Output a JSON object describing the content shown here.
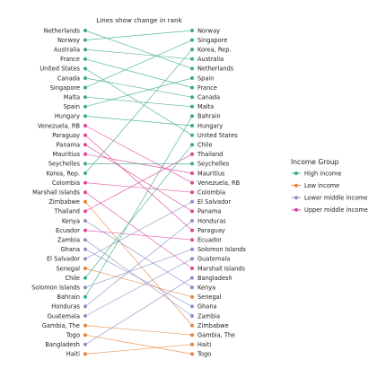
{
  "chart_data": {
    "type": "slope",
    "subtitle": "Lines show change in rank",
    "legend": {
      "title": "Income Group",
      "placement": "right",
      "entries": [
        {
          "name": "High income",
          "color": "#3aaa8a"
        },
        {
          "name": "Low income",
          "color": "#e8823a"
        },
        {
          "name": "Lower middle income",
          "color": "#8a8fc8"
        },
        {
          "name": "Upper middle income",
          "color": "#e0449a"
        }
      ]
    },
    "left_ranking": [
      "Netherlands",
      "Norway",
      "Australia",
      "France",
      "United States",
      "Canada",
      "Singapore",
      "Malta",
      "Spain",
      "Hungary",
      "Venezuela, RB",
      "Paraguay",
      "Panama",
      "Mauritius",
      "Seychelles",
      "Korea, Rep.",
      "Colombia",
      "Marshall Islands",
      "Zimbabwe",
      "Thailand",
      "Kenya",
      "Ecuador",
      "Zambia",
      "Ghana",
      "El Salvador",
      "Senegal",
      "Chile",
      "Solomon Islands",
      "Bahrain",
      "Honduras",
      "Guatemala",
      "Gambia, The",
      "Togo",
      "Bangladesh",
      "Haiti"
    ],
    "right_ranking": [
      "Norway",
      "Singapore",
      "Korea, Rep.",
      "Australia",
      "Netherlands",
      "Spain",
      "France",
      "Canada",
      "Malta",
      "Bahrain",
      "Hungary",
      "United States",
      "Chile",
      "Thailand",
      "Seychelles",
      "Mauritius",
      "Venezuela, RB",
      "Colombia",
      "El Salvador",
      "Panama",
      "Honduras",
      "Paraguay",
      "Ecuador",
      "Solomon Islands",
      "Guatemala",
      "Marshall Islands",
      "Bangladesh",
      "Kenya",
      "Senegal",
      "Ghana",
      "Zambia",
      "Zimbabwe",
      "Gambia, The",
      "Haiti",
      "Togo"
    ],
    "income_group": {
      "Netherlands": "High income",
      "Norway": "High income",
      "Australia": "High income",
      "France": "High income",
      "United States": "High income",
      "Canada": "High income",
      "Singapore": "High income",
      "Malta": "High income",
      "Spain": "High income",
      "Hungary": "High income",
      "Seychelles": "High income",
      "Korea, Rep.": "High income",
      "Chile": "High income",
      "Bahrain": "High income",
      "Venezuela, RB": "Upper middle income",
      "Paraguay": "Upper middle income",
      "Panama": "Upper middle income",
      "Mauritius": "Upper middle income",
      "Colombia": "Upper middle income",
      "Marshall Islands": "Upper middle income",
      "Thailand": "Upper middle income",
      "Ecuador": "Upper middle income",
      "Kenya": "Lower middle income",
      "Zambia": "Lower middle income",
      "Ghana": "Lower middle income",
      "El Salvador": "Lower middle income",
      "Solomon Islands": "Lower middle income",
      "Honduras": "Lower middle income",
      "Guatemala": "Lower middle income",
      "Bangladesh": "Lower middle income",
      "Zimbabwe": "Low income",
      "Senegal": "Low income",
      "Gambia, The": "Low income",
      "Togo": "Low income",
      "Haiti": "Low income"
    }
  }
}
